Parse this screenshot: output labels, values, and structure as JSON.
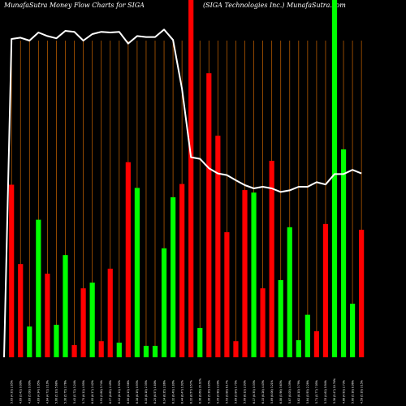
{
  "header": {
    "left": "MunafaSutra  Money Flow  Charts for SIGA",
    "right": "(SIGA Technologies Inc.) MunafaSutra.com"
  },
  "chart_data": {
    "type": "bar",
    "title": "Money Flow Charts for SIGA",
    "ylim": [
      0,
      100
    ],
    "grid": true,
    "colors": {
      "up": "#00ff00",
      "down": "#ff0000",
      "line": "#ffffff",
      "grid": "#b35900",
      "background": "#000000"
    },
    "bars": [
      {
        "label": "5.03 (4.33) 2.85%",
        "direction": "down",
        "value": 48.3
      },
      {
        "label": "4.89 (3.42) 0.00%",
        "direction": "down",
        "value": 26.1
      },
      {
        "label": "4.89 (5.08) 0.00%",
        "direction": "up",
        "value": 8.6
      },
      {
        "label": "4.89 (4.34) 1.05%",
        "direction": "up",
        "value": 38.5
      },
      {
        "label": "4.84 (4.71) 3.19%",
        "direction": "down",
        "value": 23.4
      },
      {
        "label": "5.00 (5.13) 5.68%",
        "direction": "up",
        "value": 9.1
      },
      {
        "label": "5.30 (5.75) 2.76%",
        "direction": "up",
        "value": 28.6
      },
      {
        "label": "5.45 (5.72) 5.24%",
        "direction": "down",
        "value": 3.4
      },
      {
        "label": "5.75 (6.11) 4.95%",
        "direction": "down",
        "value": 19.3
      },
      {
        "label": "6.05 (6.17) 2.42%",
        "direction": "up",
        "value": 20.9
      },
      {
        "label": "5.91 (5.88) 5.74%",
        "direction": "down",
        "value": 4.5
      },
      {
        "label": "6.27 (6.65) 2.49%",
        "direction": "down",
        "value": 24.8
      },
      {
        "label": "6.12 (6.11) 1.92%",
        "direction": "up",
        "value": 4.1
      },
      {
        "label": "6.00 (6.13) 2.56%",
        "direction": "down",
        "value": 54.6
      },
      {
        "label": "6.16 (6.19) 0.93%",
        "direction": "up",
        "value": 47.4
      },
      {
        "label": "6.10 (6.18) 2.35%",
        "direction": "up",
        "value": 3.2
      },
      {
        "label": "6.25 (6.57) 1.80%",
        "direction": "up",
        "value": 3.2
      },
      {
        "label": "6.14 (6.35) 2.86%",
        "direction": "up",
        "value": 30.5
      },
      {
        "label": "6.32 (6.49) 1.89%",
        "direction": "up",
        "value": 44.8
      },
      {
        "label": "6.44 (6.47) 1.92%",
        "direction": "down",
        "value": 48.5
      },
      {
        "label": "6.32 (6.57) 0.57%",
        "direction": "down",
        "value": 100.0
      },
      {
        "label": "6.36 (6.69) 20.02%",
        "direction": "up",
        "value": 8.2
      },
      {
        "label": "5.30 (5.30) 0.85%",
        "direction": "down",
        "value": 79.5
      },
      {
        "label": "5.35 (4.98) 3.20%",
        "direction": "down",
        "value": 62.0
      },
      {
        "label": "5.53 (5.88) 6.17%",
        "direction": "down",
        "value": 35.0
      },
      {
        "label": "5.89 (5.84) 1.75%",
        "direction": "down",
        "value": 4.5
      },
      {
        "label": "5.99 (6.13) 2.93%",
        "direction": "down",
        "value": 46.8
      },
      {
        "label": "6.17 (6.35) 0.33%",
        "direction": "up",
        "value": 46.1
      },
      {
        "label": "6.15 (6.26) 4.43%",
        "direction": "down",
        "value": 19.3
      },
      {
        "label": "5.89 (6.06) 3.21%",
        "direction": "down",
        "value": 55.0
      },
      {
        "label": "6.08 (5.96) 3.63%",
        "direction": "up",
        "value": 21.6
      },
      {
        "label": "5.87 (6.05) 4.39%",
        "direction": "up",
        "value": 36.4
      },
      {
        "label": "5.62 (6.10) 3.79%",
        "direction": "up",
        "value": 4.8
      },
      {
        "label": "5.84 (5.93) 2.28%",
        "direction": "up",
        "value": 11.9
      },
      {
        "label": "5.71 (5.77) 7.05%",
        "direction": "down",
        "value": 7.3
      },
      {
        "label": "5.33 (4.61) 0.94%",
        "direction": "down",
        "value": 37.3
      },
      {
        "label": "5.38 (5.47) 10.76%",
        "direction": "up",
        "value": 100.0
      },
      {
        "label": "4.86 (4.93) 2.73%",
        "direction": "up",
        "value": 58.2
      },
      {
        "label": "5.00 (5.16) 8.96%",
        "direction": "up",
        "value": 15.0
      },
      {
        "label": "4.59 (5.19) 3.15%",
        "direction": "down",
        "value": 35.7
      }
    ],
    "line": [
      98,
      98.4,
      97.5,
      100,
      98.9,
      98.2,
      100.5,
      100.2,
      97.5,
      99.5,
      100.2,
      100,
      100.2,
      96.6,
      98.9,
      98.6,
      98.6,
      100.9,
      97.7,
      82.6,
      61.6,
      61.1,
      58.2,
      56.6,
      56.1,
      54.5,
      53,
      52,
      52.5,
      52,
      50.9,
      51.4,
      52.5,
      52.5,
      53.9,
      53.2,
      56.4,
      56.4,
      57.7,
      56.6
    ]
  }
}
